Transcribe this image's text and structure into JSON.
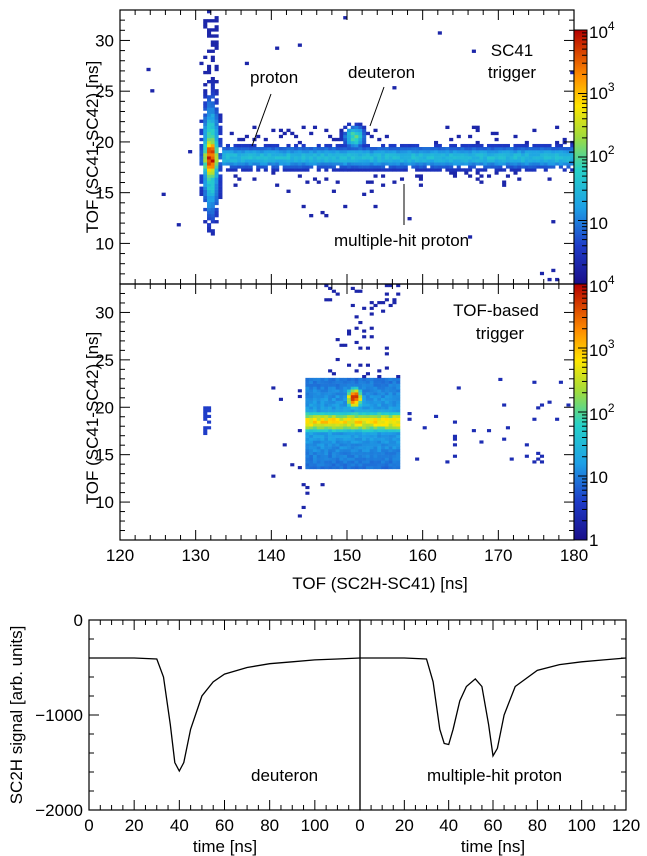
{
  "chart_data": [
    {
      "type": "heatmap",
      "panel": "top",
      "ylabel": "TOF (SC41-SC42) [ns]",
      "xlim": [
        120,
        180
      ],
      "ylim": [
        6,
        33
      ],
      "yticks": [
        "10",
        "15",
        "20",
        "25",
        "30"
      ],
      "annotations": [
        {
          "text": "SC41",
          "line": 1
        },
        {
          "text": "trigger",
          "line": 2
        },
        {
          "text": "proton",
          "points_to": [
            133.5,
            20
          ]
        },
        {
          "text": "deuteron",
          "points_to": [
            151,
            21
          ]
        },
        {
          "text": "multiple-hit proton",
          "points_to": [
            155,
            18.5
          ]
        }
      ],
      "colorbar": {
        "scale": "log",
        "range": [
          1,
          10000
        ],
        "ticks": [
          "10",
          "10",
          "10",
          "10"
        ],
        "exponents": [
          "",
          "2",
          "3",
          "4"
        ],
        "top_label": "10",
        "top_exp": "4"
      },
      "clusters": [
        {
          "name": "proton",
          "x": 132,
          "y": 18.5,
          "peak": 10000
        },
        {
          "name": "deuteron",
          "x": 151,
          "y": 20.5,
          "peak": 300
        },
        {
          "name": "multiple-hit proton band",
          "x_range": [
            133,
            180
          ],
          "y": 18.5,
          "peak": 120
        }
      ]
    },
    {
      "type": "heatmap",
      "panel": "middle",
      "xlabel": "TOF (SC2H-SC41) [ns]",
      "ylabel": "TOF (SC41-SC42) [ns]",
      "xlim": [
        120,
        180
      ],
      "ylim": [
        6,
        33
      ],
      "xticks": [
        "120",
        "130",
        "140",
        "150",
        "160",
        "170",
        "180"
      ],
      "yticks": [
        "10",
        "15",
        "20",
        "25",
        "30"
      ],
      "annotations": [
        {
          "text": "TOF-based",
          "line": 1
        },
        {
          "text": "trigger",
          "line": 2
        }
      ],
      "colorbar": {
        "scale": "log",
        "range": [
          1,
          10000
        ],
        "ticks": [
          "1",
          "10",
          "10",
          "10"
        ],
        "exponents": [
          "",
          "",
          "2",
          "3"
        ],
        "top_label": "10",
        "top_exp": "4"
      },
      "clusters": [
        {
          "name": "deuteron",
          "x": 151,
          "y": 21,
          "peak": 8000
        },
        {
          "name": "band",
          "x_range": [
            144,
            157
          ],
          "y": 18.5,
          "peak": 800
        },
        {
          "name": "small",
          "x": 132,
          "y": 18.5,
          "peak": 5
        }
      ]
    },
    {
      "type": "line",
      "panel": "bottom-left",
      "label": "deuteron",
      "xlabel": "time [ns]",
      "ylabel": "SC2H signal [arb. units]",
      "xlim": [
        0,
        120
      ],
      "ylim": [
        -2000,
        0
      ],
      "xticks": [
        "0",
        "20",
        "40",
        "60",
        "80",
        "100"
      ],
      "yticks": [
        "0",
        "−1000",
        "−2000"
      ],
      "x": [
        0,
        10,
        20,
        30,
        33,
        36,
        38,
        40,
        42,
        45,
        50,
        55,
        60,
        70,
        80,
        90,
        100,
        110,
        120
      ],
      "y": [
        -400,
        -400,
        -400,
        -410,
        -600,
        -1100,
        -1500,
        -1590,
        -1500,
        -1150,
        -800,
        -650,
        -570,
        -500,
        -460,
        -440,
        -420,
        -410,
        -400
      ]
    },
    {
      "type": "line",
      "panel": "bottom-right",
      "label": "multiple-hit proton",
      "xlabel": "time [ns]",
      "xlim": [
        0,
        120
      ],
      "ylim": [
        -2000,
        0
      ],
      "xticks": [
        "0",
        "20",
        "40",
        "60",
        "80",
        "100",
        "120"
      ],
      "x": [
        0,
        10,
        20,
        30,
        33,
        36,
        38,
        40,
        42,
        45,
        48,
        52,
        55,
        58,
        60,
        62,
        65,
        70,
        80,
        90,
        100,
        110,
        120
      ],
      "y": [
        -400,
        -400,
        -400,
        -410,
        -650,
        -1150,
        -1300,
        -1310,
        -1150,
        -850,
        -700,
        -620,
        -700,
        -1100,
        -1430,
        -1350,
        -1000,
        -700,
        -530,
        -470,
        -440,
        -420,
        -400
      ]
    }
  ]
}
